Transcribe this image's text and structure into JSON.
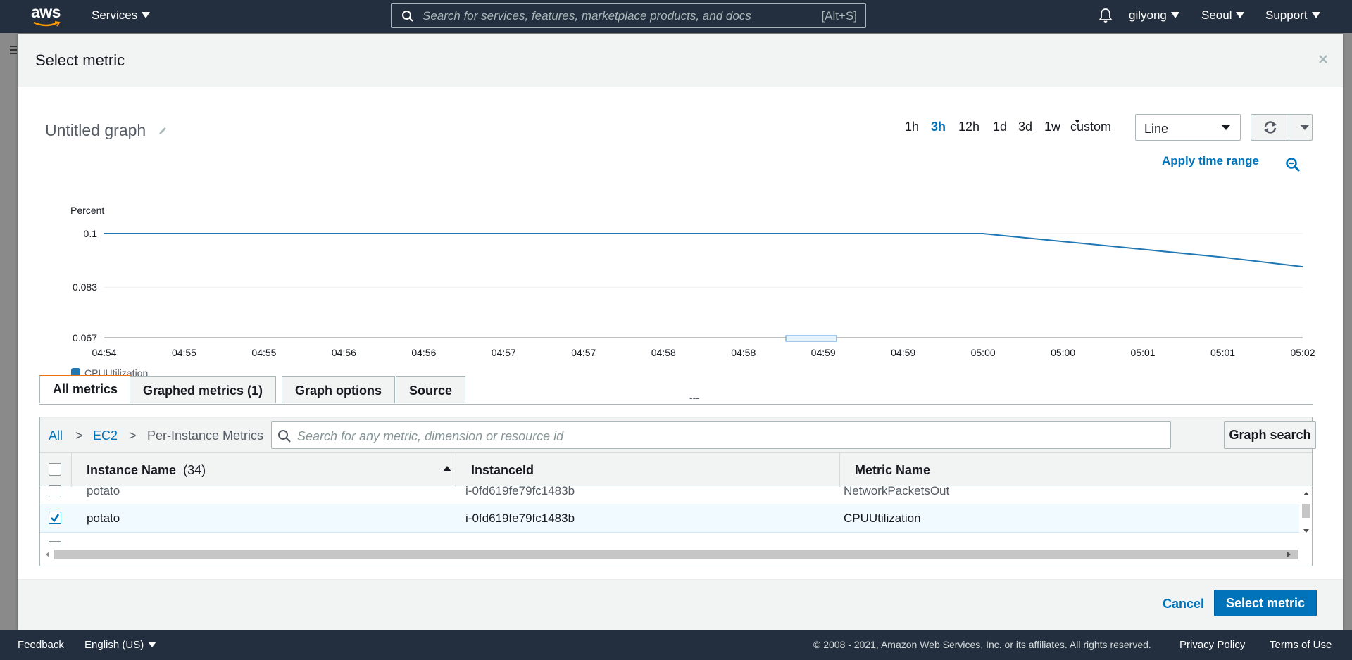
{
  "topnav": {
    "logo": "aws",
    "services_label": "Services",
    "search_placeholder": "Search for services, features, marketplace products, and docs",
    "search_shortcut": "[Alt+S]",
    "user": "gilyong",
    "region": "Seoul",
    "support": "Support"
  },
  "modal": {
    "title": "Select metric",
    "graph_title": "Untitled graph",
    "time_ranges": [
      "1h",
      "3h",
      "12h",
      "1d",
      "3d",
      "1w"
    ],
    "active_range": "3h",
    "custom_label": "custom",
    "chart_type": "Line",
    "apply_time_range": "Apply time range",
    "tabs": [
      "All metrics",
      "Graphed metrics (1)",
      "Graph options",
      "Source"
    ],
    "active_tab": "All metrics",
    "breadcrumb": {
      "all": "All",
      "sep": ">",
      "ec2": "EC2",
      "current": "Per-Instance Metrics"
    },
    "metric_search_placeholder": "Search for any metric, dimension or resource id",
    "graph_search": "Graph search",
    "table": {
      "headers": {
        "instance_name": "Instance Name",
        "instance_count": "(34)",
        "instance_id": "InstanceId",
        "metric_name": "Metric Name"
      },
      "rows": [
        {
          "name": "potato",
          "id": "i-0fd619fe79fc1483b",
          "metric": "NetworkPacketsOut",
          "checked": false
        },
        {
          "name": "potato",
          "id": "i-0fd619fe79fc1483b",
          "metric": "CPUUtilization",
          "checked": true
        }
      ]
    },
    "divider_dots": "---",
    "cancel": "Cancel",
    "select_metric": "Select metric"
  },
  "chart_data": {
    "type": "line",
    "ylabel": "Percent",
    "y_ticks": [
      "0.1",
      "0.083",
      "0.067"
    ],
    "ylim": [
      0.067,
      0.1
    ],
    "x": [
      "04:54",
      "04:55",
      "04:55",
      "04:56",
      "04:56",
      "04:57",
      "04:57",
      "04:58",
      "04:58",
      "04:59",
      "04:59",
      "05:00",
      "05:00",
      "05:01",
      "05:01",
      "05:02"
    ],
    "series": [
      {
        "name": "CPUUtilization",
        "color": "#1f77b4",
        "values": [
          0.1,
          0.1,
          0.1,
          0.1,
          0.1,
          0.1,
          0.1,
          0.1,
          0.1,
          0.1,
          0.1,
          0.1,
          0.0975,
          0.095,
          0.0925,
          0.0895
        ]
      }
    ],
    "grid": true,
    "legend": "bottom-left"
  },
  "footer": {
    "feedback": "Feedback",
    "language": "English (US)",
    "copyright": "© 2008 - 2021, Amazon Web Services, Inc. or its affiliates. All rights reserved.",
    "privacy": "Privacy Policy",
    "terms": "Terms of Use"
  }
}
